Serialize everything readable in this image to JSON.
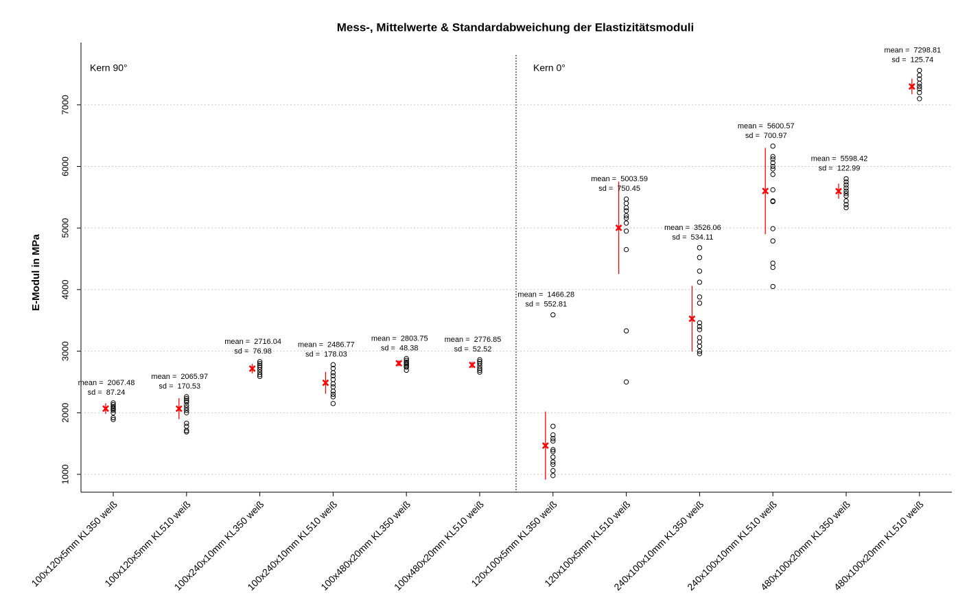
{
  "chart_data": {
    "type": "scatter",
    "title": "Mess-, Mittelwerte & Standardabweichung der Elastizitätsmoduli",
    "y_label": "E-Modul in MPa",
    "panels": [
      "Kern 90°",
      "Kern 0°"
    ],
    "categories": [
      "100x120x5mm KL350 weiß",
      "100x120x5mm KL510 weiß",
      "100x240x10mm KL350 weiß",
      "100x240x10mm KL510 weiß",
      "100x480x20mm KL350 weiß",
      "100x480x20mm KL510 weiß",
      "120x100x5mm KL350 weiß",
      "120x100x5mm KL510 weiß",
      "240x100x10mm KL350 weiß",
      "240x100x10mm KL510 weiß",
      "480x100x20mm KL350 weiß",
      "480x100x20mm KL510 weiß"
    ],
    "points": [
      [
        2160,
        2130,
        2100,
        2080,
        2060,
        2040,
        2000,
        1920,
        1890
      ],
      [
        2260,
        2230,
        2200,
        2170,
        2120,
        2080,
        2040,
        2000,
        1830,
        1780,
        1710,
        1690
      ],
      [
        2830,
        2800,
        2770,
        2740,
        2700,
        2660,
        2620,
        2590
      ],
      [
        2780,
        2720,
        2650,
        2600,
        2540,
        2470,
        2420,
        2350,
        2300,
        2260,
        2150
      ],
      [
        2880,
        2850,
        2820,
        2800,
        2780,
        2760,
        2740,
        2690
      ],
      [
        2860,
        2830,
        2800,
        2760,
        2720,
        2690,
        2660
      ],
      [
        3590,
        1780,
        1640,
        1580,
        1540,
        1400,
        1370,
        1280,
        1200,
        1160,
        1060,
        980
      ],
      [
        5470,
        5400,
        5330,
        5280,
        5200,
        5160,
        5080,
        4950,
        4650,
        3330,
        2500
      ],
      [
        4680,
        4520,
        4300,
        4120,
        3880,
        3780,
        3460,
        3400,
        3350,
        3220,
        3150,
        3080,
        3000,
        2960
      ],
      [
        6330,
        6160,
        6120,
        6060,
        6000,
        5960,
        5870,
        5620,
        5440,
        5430,
        4990,
        4790,
        4430,
        4360,
        4050
      ],
      [
        5800,
        5750,
        5700,
        5650,
        5600,
        5560,
        5520,
        5440,
        5380,
        5330
      ],
      [
        7560,
        7480,
        7420,
        7350,
        7300,
        7260,
        7200,
        7100
      ]
    ],
    "means": [
      2067.48,
      2065.97,
      2716.04,
      2486.77,
      2803.75,
      2776.85,
      1466.28,
      5003.59,
      3526.06,
      5600.57,
      5598.42,
      7298.81
    ],
    "sds": [
      87.24,
      170.53,
      76.98,
      178.03,
      48.38,
      52.52,
      552.81,
      750.45,
      534.11,
      700.97,
      122.99,
      125.74
    ],
    "mean_label": "mean =",
    "sd_label": "sd =",
    "point_color": "#000000",
    "mean_color": "#ff0000",
    "ylim": [
      710,
      7800
    ],
    "yticks": [
      1000,
      2000,
      3000,
      4000,
      5000,
      6000,
      7000
    ],
    "grid": true
  }
}
